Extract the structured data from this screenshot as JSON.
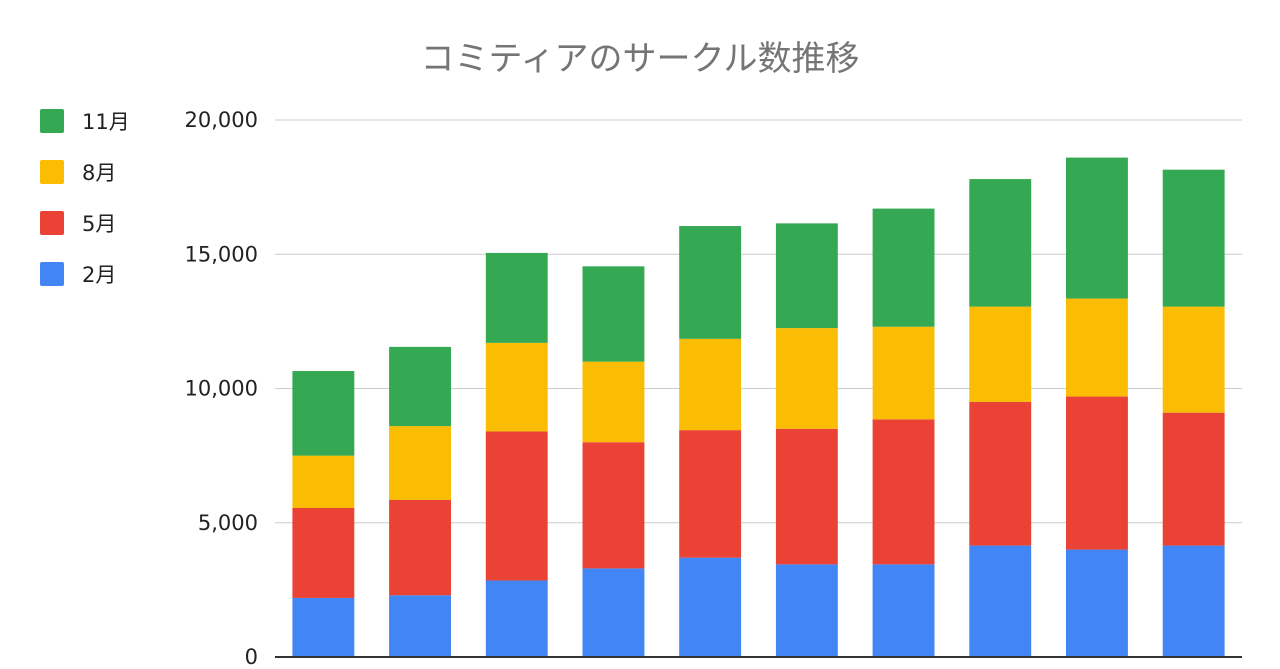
{
  "chart_data": {
    "type": "bar",
    "stacked": true,
    "title": "コミティアのサークル数推移",
    "xlabel": "",
    "ylabel": "",
    "ylim": [
      0,
      20000
    ],
    "yticks": [
      "0",
      "5,000",
      "10,000",
      "15,000",
      "20,000"
    ],
    "ytick_values": [
      0,
      5000,
      10000,
      15000,
      20000
    ],
    "grid": true,
    "legend_position": "left",
    "categories": [
      "",
      "",
      "",
      "",
      "",
      "",
      "",
      "",
      "",
      ""
    ],
    "series": [
      {
        "name": "2月",
        "color": "#4285F4",
        "values": [
          2200,
          2300,
          2850,
          3300,
          3700,
          3450,
          3450,
          4150,
          4000,
          4150
        ]
      },
      {
        "name": "5月",
        "color": "#EA4335",
        "values": [
          3350,
          3550,
          5550,
          4700,
          4750,
          5050,
          5400,
          5350,
          5700,
          4950
        ]
      },
      {
        "name": "8月",
        "color": "#FBBC04",
        "values": [
          1950,
          2750,
          3300,
          3000,
          3400,
          3750,
          3450,
          3550,
          3650,
          3950
        ]
      },
      {
        "name": "11月",
        "color": "#34A853",
        "values": [
          3150,
          2950,
          3350,
          3550,
          4200,
          3900,
          4400,
          4750,
          5250,
          5100
        ]
      }
    ]
  }
}
